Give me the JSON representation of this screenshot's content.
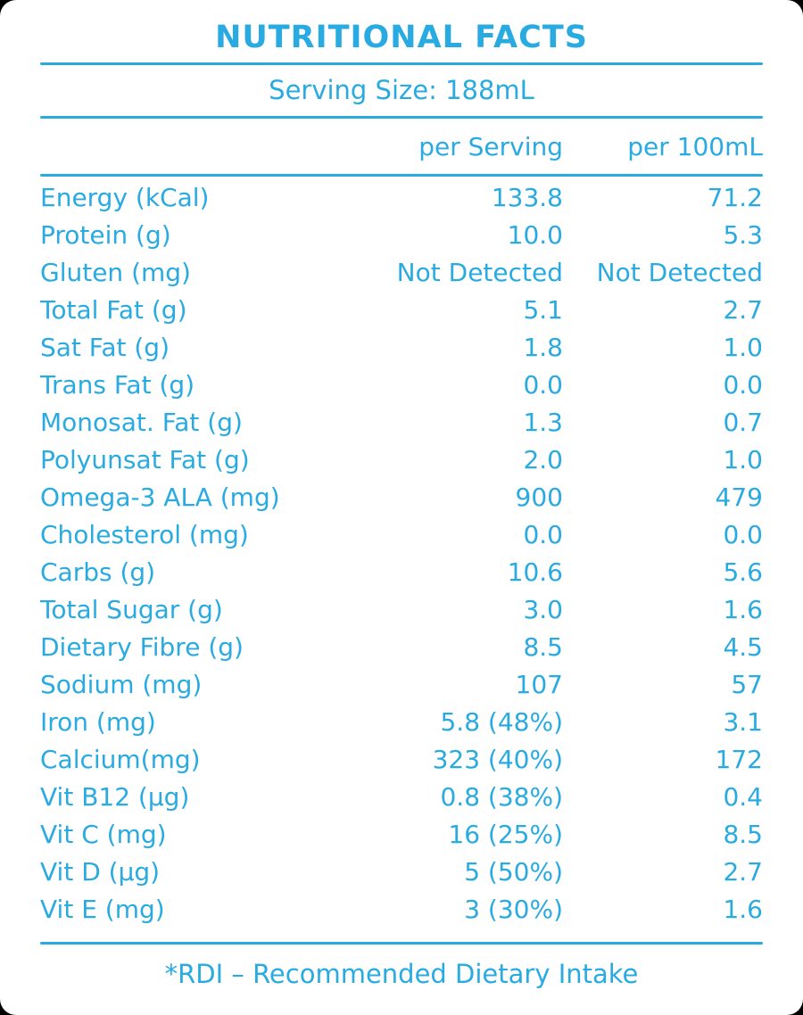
{
  "label": {
    "title": "NUTRITIONAL FACTS",
    "serving_size": "Serving Size: 188mL",
    "footer_note": "*RDI – Recommended Dietary Intake",
    "accent_color": "#29ABE2",
    "background_color": "#ffffff"
  },
  "table": {
    "columns": {
      "per_serving": "per Serving",
      "per_100ml": "per 100mL"
    },
    "rows": [
      {
        "label": "Energy (kCal)",
        "per_serving": "133.8",
        "per_100ml": "71.2"
      },
      {
        "label": "Protein (g)",
        "per_serving": "10.0",
        "per_100ml": "5.3"
      },
      {
        "label": "Gluten (mg)",
        "per_serving": "Not Detected",
        "per_100ml": "Not Detected"
      },
      {
        "label": "Total Fat (g)",
        "per_serving": "5.1",
        "per_100ml": "2.7"
      },
      {
        "label": "Sat Fat (g)",
        "per_serving": "1.8",
        "per_100ml": "1.0"
      },
      {
        "label": "Trans Fat (g)",
        "per_serving": "0.0",
        "per_100ml": "0.0"
      },
      {
        "label": "Monosat. Fat (g)",
        "per_serving": "1.3",
        "per_100ml": "0.7"
      },
      {
        "label": "Polyunsat Fat (g)",
        "per_serving": "2.0",
        "per_100ml": "1.0"
      },
      {
        "label": "Omega-3 ALA (mg)",
        "per_serving": "900",
        "per_100ml": "479"
      },
      {
        "label": "Cholesterol (mg)",
        "per_serving": "0.0",
        "per_100ml": "0.0"
      },
      {
        "label": "Carbs (g)",
        "per_serving": "10.6",
        "per_100ml": "5.6"
      },
      {
        "label": "Total Sugar (g)",
        "per_serving": "3.0",
        "per_100ml": "1.6"
      },
      {
        "label": "Dietary Fibre (g)",
        "per_serving": "8.5",
        "per_100ml": "4.5"
      },
      {
        "label": "Sodium (mg)",
        "per_serving": "107",
        "per_100ml": "57"
      },
      {
        "label": "Iron (mg)",
        "per_serving": "5.8 (48%)",
        "per_100ml": "3.1"
      },
      {
        "label": "Calcium(mg)",
        "per_serving": "323 (40%)",
        "per_100ml": "172"
      },
      {
        "label": "Vit B12 (µg)",
        "per_serving": "0.8 (38%)",
        "per_100ml": "0.4"
      },
      {
        "label": "Vit C (mg)",
        "per_serving": "16 (25%)",
        "per_100ml": "8.5"
      },
      {
        "label": "Vit D (µg)",
        "per_serving": "5 (50%)",
        "per_100ml": "2.7"
      },
      {
        "label": "Vit E (mg)",
        "per_serving": "3 (30%)",
        "per_100ml": "1.6"
      }
    ]
  }
}
